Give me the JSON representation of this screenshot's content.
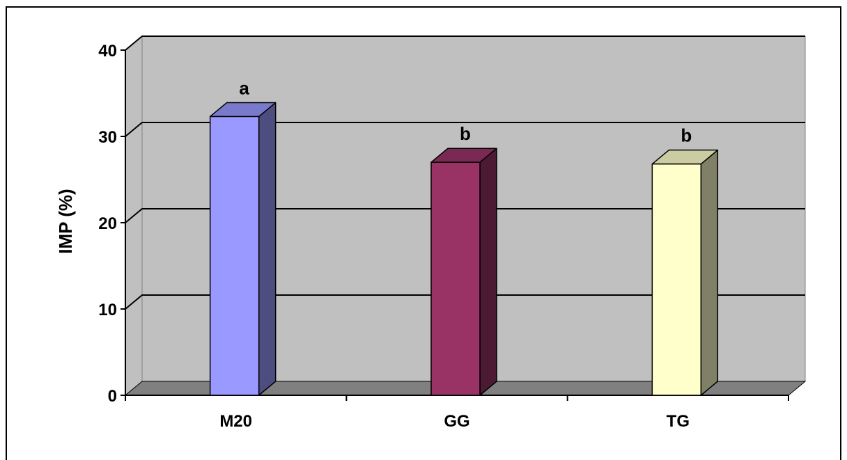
{
  "chart_data": {
    "type": "bar",
    "style": "3d-column",
    "title": "",
    "xlabel": "",
    "ylabel": "IMP (%)",
    "ylim": [
      0,
      40
    ],
    "yticks": [
      "0",
      "10",
      "20",
      "30",
      "40"
    ],
    "grid": true,
    "categories": [
      "M20",
      "GG",
      "TG"
    ],
    "values": [
      32.3,
      27.0,
      26.8
    ],
    "data_labels": [
      "a",
      "b",
      "b"
    ],
    "colors": {
      "plot_background": "#c0c0c0",
      "floor": "#808080",
      "bars": [
        {
          "front": "#9999ff",
          "side": "#4d4d80",
          "top": "#7a7acc"
        },
        {
          "front": "#993366",
          "side": "#4d1a33",
          "top": "#7a2952"
        },
        {
          "front": "#ffffcc",
          "side": "#808066",
          "top": "#cccca3"
        }
      ]
    }
  }
}
